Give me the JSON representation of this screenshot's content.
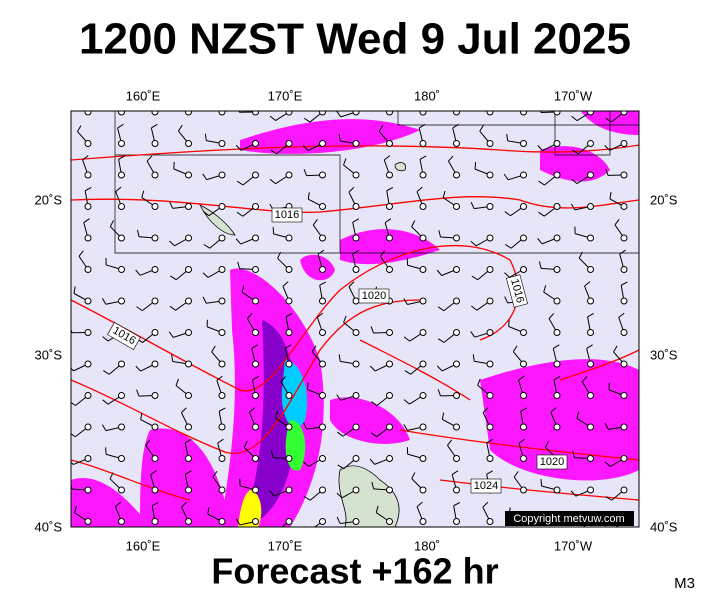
{
  "header": {
    "title": "1200 NZST Wed 9 Jul 2025"
  },
  "map": {
    "lon_labels": [
      "160˚E",
      "170˚E",
      "180˚",
      "170˚W"
    ],
    "lat_labels": [
      "20˚S",
      "30˚S",
      "40˚S"
    ],
    "isobar_labels": [
      "1016",
      "1020",
      "1016",
      "1016",
      "1020",
      "1024"
    ],
    "copyright": "Copyright metvuw.com"
  },
  "footer": {
    "forecast": "Forecast +162 hr",
    "code": "M3"
  }
}
